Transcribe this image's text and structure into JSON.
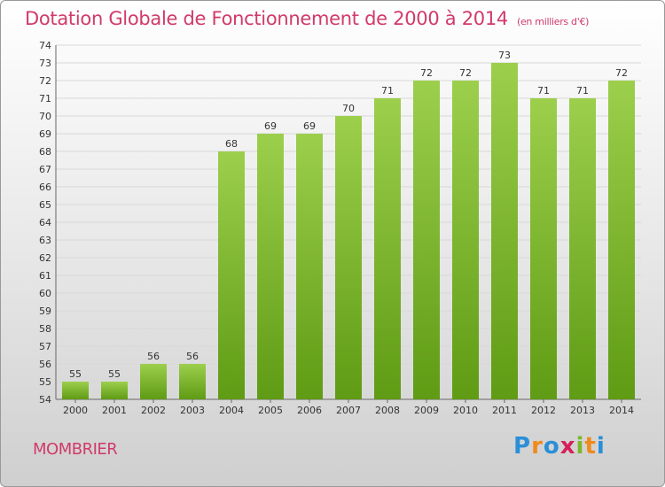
{
  "header": {
    "title": "Dotation Globale de Fonctionnement de 2000 à 2014",
    "unit": "(en milliers d'€)"
  },
  "commune": "MOMBRIER",
  "logo": {
    "text": "Proxiti",
    "letters": [
      "P",
      "r",
      "o",
      "x",
      "i",
      "t",
      "i"
    ]
  },
  "colors": {
    "title": "#d13a6a",
    "bar_top": "#9ccf4c",
    "bar_bottom": "#5f9b14",
    "grid": "#d8d8d8"
  },
  "chart_data": {
    "type": "bar",
    "title": "Dotation Globale de Fonctionnement de 2000 à 2014",
    "xlabel": "",
    "ylabel": "",
    "categories": [
      "2000",
      "2001",
      "2002",
      "2003",
      "2004",
      "2005",
      "2006",
      "2007",
      "2008",
      "2009",
      "2010",
      "2011",
      "2012",
      "2013",
      "2014"
    ],
    "values": [
      55,
      55,
      56,
      56,
      68,
      69,
      69,
      70,
      71,
      72,
      72,
      73,
      71,
      71,
      72
    ],
    "ylim": [
      54,
      74
    ],
    "yticks": [
      54,
      55,
      56,
      57,
      58,
      59,
      60,
      61,
      62,
      63,
      64,
      65,
      66,
      67,
      68,
      69,
      70,
      71,
      72,
      73,
      74
    ],
    "grid": true,
    "data_labels": true
  }
}
